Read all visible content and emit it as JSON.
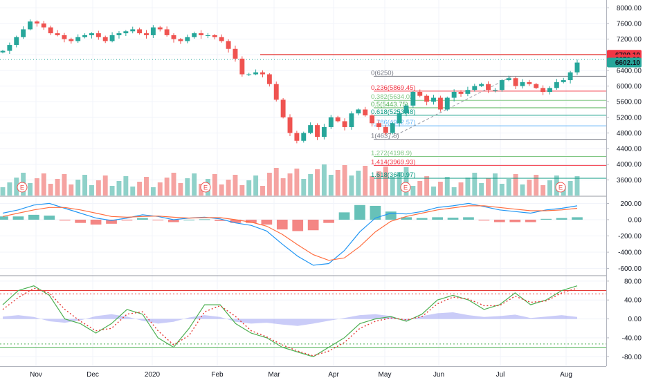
{
  "chart_data": {
    "type": "candlestick",
    "instrument_note": "",
    "colors": {
      "up": "#26a69a",
      "down": "#ef5350",
      "vol_up": "#8fd1c9",
      "vol_down": "#f5a3a1",
      "macd_line": "#2196f3",
      "signal_line": "#ff6d3f",
      "stoch_k": "#4caf50",
      "stoch_d": "#e53935",
      "cloud": "#8a8ff0",
      "axis_text": "#131722",
      "grid": "#f0f3fa"
    },
    "x_axis": {
      "ticks": [
        "Nov",
        "Dec",
        "2020",
        "Feb",
        "Mar",
        "Apr",
        "May",
        "Jun",
        "Jul",
        "Aug"
      ]
    },
    "price_panel": {
      "ylim": [
        3200,
        8200
      ],
      "ticks": [
        "8000.00",
        "7600.00",
        "7200.00",
        "6800.00",
        "6400.00",
        "6000.00",
        "5600.00",
        "5200.00",
        "4800.00",
        "4400.00",
        "4000.00",
        "3600.00"
      ],
      "tick_values": [
        8000,
        7600,
        7200,
        6800,
        6400,
        6000,
        5600,
        5200,
        4800,
        4400,
        4000,
        3600
      ],
      "price_labels": [
        {
          "text": "6799.10",
          "value": 6799.1,
          "color": "#f23645"
        },
        {
          "text": "6679.00",
          "value": 6679.0,
          "color": "#f23645"
        },
        {
          "text": "6602.10",
          "value": 6602.1,
          "color": "#26a69a"
        }
      ],
      "resistance": {
        "value": 6799.1,
        "color": "#e53935"
      },
      "dotted_line": {
        "value": 6679.0,
        "color": "#26a69a"
      },
      "fib_levels": [
        {
          "label": "0(6250)",
          "value": 6250,
          "color": "#787b86"
        },
        {
          "label": "0.236(5869.45)",
          "value": 5869.45,
          "color": "#f23645"
        },
        {
          "label": "0.382(5634.02)",
          "value": 5634.02,
          "color": "#81c784"
        },
        {
          "label": "0.5(5443.75)",
          "value": 5443.75,
          "color": "#4caf50"
        },
        {
          "label": "0.618(5253.48)",
          "value": 5253.48,
          "color": "#089981"
        },
        {
          "label": "0.786(4982.57)",
          "value": 4982.57,
          "color": "#64b5f6"
        },
        {
          "label": "1(4637.5)",
          "value": 4637.5,
          "color": "#787b86"
        },
        {
          "label": "1.272(4198.9)",
          "value": 4198.9,
          "color": "#81c784"
        },
        {
          "label": "1.414(3969.93)",
          "value": 3969.93,
          "color": "#f23645"
        },
        {
          "label": "1.618(3640.97)",
          "value": 3640.97,
          "color": "#089981"
        }
      ],
      "earnings_markers": [
        "E",
        "E",
        "E",
        "E"
      ],
      "closes": [
        6900,
        7050,
        7250,
        7450,
        7650,
        7600,
        7500,
        7350,
        7300,
        7200,
        7150,
        7250,
        7300,
        7350,
        7250,
        7150,
        7300,
        7350,
        7400,
        7450,
        7350,
        7300,
        7500,
        7450,
        7300,
        7200,
        7150,
        7250,
        7350,
        7300,
        7300,
        7250,
        7150,
        6950,
        6700,
        6300,
        6300,
        6350,
        6300,
        6050,
        5650,
        5200,
        4800,
        4600,
        4800,
        5000,
        4700,
        4950,
        5200,
        5100,
        4950,
        5300,
        5400,
        5250,
        5050,
        4950,
        4800,
        5050,
        5300,
        5500,
        5850,
        5750,
        5600,
        5700,
        5400,
        5700,
        5850,
        5800,
        5900,
        6000,
        6050,
        5900,
        5900,
        6150,
        6200,
        6000,
        6100,
        6050,
        5950,
        5850,
        5950,
        6100,
        6150,
        6350,
        6600
      ]
    },
    "macd_panel": {
      "ylim": [
        -680,
        280
      ],
      "ticks": [
        "200.00",
        "0.00",
        "-200.00",
        "-400.00",
        "-600.00"
      ],
      "tick_values": [
        200,
        0,
        -200,
        -400,
        -600
      ],
      "macd": [
        80,
        120,
        180,
        200,
        140,
        80,
        20,
        -10,
        20,
        60,
        40,
        0,
        20,
        30,
        10,
        -40,
        -70,
        -140,
        -300,
        -450,
        -560,
        -540,
        -380,
        -150,
        20,
        80,
        70,
        100,
        150,
        170,
        200,
        160,
        120,
        100,
        80,
        120,
        140,
        170
      ],
      "signal": [
        40,
        80,
        120,
        150,
        150,
        120,
        80,
        40,
        30,
        40,
        45,
        30,
        20,
        25,
        25,
        0,
        -30,
        -80,
        -180,
        -310,
        -430,
        -500,
        -470,
        -330,
        -150,
        -20,
        40,
        80,
        120,
        145,
        170,
        170,
        150,
        130,
        110,
        110,
        120,
        140
      ],
      "hist": [
        40,
        40,
        60,
        50,
        -10,
        -40,
        -60,
        -50,
        -10,
        20,
        -5,
        -30,
        0,
        5,
        -15,
        -40,
        -40,
        -60,
        -120,
        -140,
        -130,
        -40,
        90,
        180,
        170,
        100,
        30,
        20,
        30,
        25,
        30,
        -10,
        -30,
        -30,
        -30,
        10,
        20,
        30
      ]
    },
    "stoch_panel": {
      "ylim": [
        -100,
        90
      ],
      "ticks": [
        "80.00",
        "40.00",
        "0.00",
        "-40.00",
        "-80.00"
      ],
      "tick_values": [
        80,
        40,
        0,
        -40,
        -80
      ],
      "overbought": 60,
      "overbought_dotted": 53,
      "oversold": -60,
      "oversold_dotted": -53,
      "k": [
        30,
        60,
        70,
        50,
        0,
        -10,
        -30,
        -10,
        20,
        10,
        -40,
        -60,
        -20,
        30,
        30,
        -10,
        -30,
        -40,
        -60,
        -70,
        -80,
        -60,
        -40,
        -10,
        0,
        5,
        -5,
        10,
        40,
        50,
        40,
        20,
        30,
        55,
        30,
        40,
        60,
        70
      ],
      "d": [
        20,
        45,
        65,
        55,
        20,
        -5,
        -25,
        -20,
        10,
        15,
        -25,
        -55,
        -35,
        15,
        28,
        5,
        -25,
        -38,
        -55,
        -68,
        -78,
        -68,
        -50,
        -20,
        -5,
        2,
        -2,
        5,
        32,
        46,
        42,
        28,
        28,
        48,
        35,
        38,
        55,
        65
      ],
      "cloud": [
        5,
        8,
        4,
        -5,
        -8,
        -3,
        6,
        10,
        5,
        -4,
        -10,
        -6,
        3,
        8,
        4,
        -6,
        -10,
        -8,
        -12,
        -15,
        -10,
        -4,
        2,
        8,
        10,
        6,
        -4,
        6,
        12,
        14,
        8,
        4,
        6,
        9,
        2,
        5,
        8,
        4
      ]
    }
  }
}
